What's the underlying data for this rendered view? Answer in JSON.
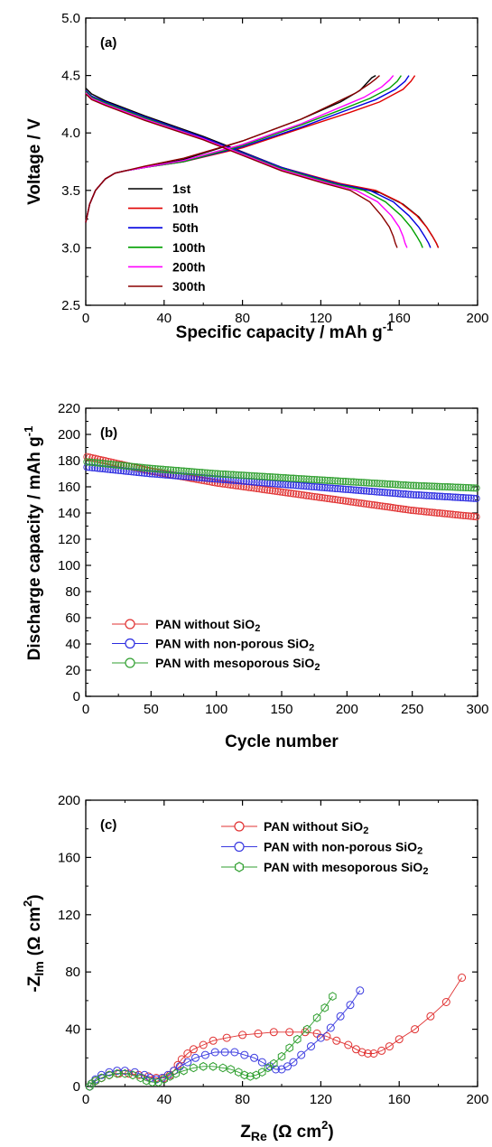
{
  "chart_data": [
    {
      "type": "line",
      "panel_label": "(a)",
      "xlabel": "Specific capacity / mAh g",
      "xlabel_sup": "-1",
      "ylabel": "Voltage / V",
      "xlim": [
        0,
        200
      ],
      "ylim": [
        2.5,
        5.0
      ],
      "xticks": [
        "0",
        "40",
        "80",
        "120",
        "160",
        "200"
      ],
      "yticks": [
        "2.5",
        "3.0",
        "3.5",
        "4.0",
        "4.5",
        "5.0"
      ],
      "legend_position": "bottom-left",
      "series": [
        {
          "name": "1st",
          "color": "#000000",
          "charge": {
            "x": [
              0,
              2,
              5,
              10,
              15,
              20,
              30,
              50,
              80,
              110,
              130,
              140,
              146,
              148
            ],
            "y": [
              3.22,
              3.38,
              3.5,
              3.6,
              3.65,
              3.67,
              3.7,
              3.77,
              3.93,
              4.12,
              4.27,
              4.37,
              4.48,
              4.5
            ]
          },
          "discharge": {
            "x": [
              0,
              3,
              10,
              30,
              60,
              100,
              130,
              150,
              162,
              170,
              174,
              177,
              179,
              180
            ],
            "y": [
              4.39,
              4.34,
              4.28,
              4.15,
              3.97,
              3.7,
              3.55,
              3.48,
              3.38,
              3.27,
              3.18,
              3.1,
              3.04,
              3.0
            ]
          }
        },
        {
          "name": "10th",
          "color": "#e00000",
          "charge": {
            "x": [
              0,
              2,
              5,
              10,
              15,
              20,
              30,
              50,
              80,
              110,
              135,
              150,
              162,
              166,
              168
            ],
            "y": [
              3.22,
              3.38,
              3.5,
              3.6,
              3.65,
              3.67,
              3.7,
              3.75,
              3.87,
              4.04,
              4.18,
              4.27,
              4.38,
              4.45,
              4.5
            ]
          },
          "discharge": {
            "x": [
              0,
              3,
              10,
              30,
              60,
              100,
              130,
              148,
              160,
              169,
              174,
              177,
              179,
              180
            ],
            "y": [
              4.37,
              4.32,
              4.27,
              4.14,
              3.96,
              3.7,
              3.56,
              3.5,
              3.4,
              3.28,
              3.18,
              3.1,
              3.04,
              3.0
            ]
          }
        },
        {
          "name": "50th",
          "color": "#0000e0",
          "charge": {
            "x": [
              0,
              2,
              5,
              10,
              15,
              20,
              30,
              50,
              80,
              110,
              132,
              148,
              158,
              163,
              165
            ],
            "y": [
              3.22,
              3.38,
              3.5,
              3.6,
              3.65,
              3.67,
              3.7,
              3.75,
              3.88,
              4.05,
              4.19,
              4.29,
              4.38,
              4.45,
              4.5
            ]
          },
          "discharge": {
            "x": [
              0,
              3,
              10,
              30,
              60,
              100,
              128,
              145,
              157,
              165,
              170,
              173,
              175,
              176
            ],
            "y": [
              4.37,
              4.32,
              4.27,
              4.14,
              3.96,
              3.7,
              3.56,
              3.5,
              3.4,
              3.28,
              3.18,
              3.1,
              3.04,
              3.0
            ]
          }
        },
        {
          "name": "100th",
          "color": "#00a000",
          "charge": {
            "x": [
              0,
              2,
              5,
              10,
              15,
              20,
              30,
              50,
              80,
              110,
              130,
              145,
              155,
              159,
              161
            ],
            "y": [
              3.22,
              3.38,
              3.5,
              3.6,
              3.65,
              3.67,
              3.7,
              3.75,
              3.89,
              4.07,
              4.2,
              4.3,
              4.39,
              4.45,
              4.5
            ]
          },
          "discharge": {
            "x": [
              0,
              3,
              10,
              30,
              60,
              100,
              126,
              142,
              153,
              161,
              166,
              169,
              171,
              172
            ],
            "y": [
              4.36,
              4.31,
              4.26,
              4.13,
              3.95,
              3.69,
              3.56,
              3.5,
              3.4,
              3.28,
              3.18,
              3.1,
              3.04,
              3.0
            ]
          }
        },
        {
          "name": "200th",
          "color": "#ff00ff",
          "charge": {
            "x": [
              0,
              2,
              5,
              10,
              15,
              20,
              30,
              50,
              80,
              110,
              128,
              142,
              151,
              155,
              157
            ],
            "y": [
              3.22,
              3.38,
              3.5,
              3.6,
              3.65,
              3.67,
              3.7,
              3.76,
              3.9,
              4.08,
              4.21,
              4.31,
              4.4,
              4.46,
              4.5
            ]
          },
          "discharge": {
            "x": [
              0,
              3,
              10,
              30,
              60,
              100,
              124,
              138,
              149,
              156,
              160,
              162,
              163,
              164
            ],
            "y": [
              4.35,
              4.3,
              4.25,
              4.12,
              3.95,
              3.68,
              3.56,
              3.5,
              3.4,
              3.28,
              3.18,
              3.1,
              3.04,
              3.0
            ]
          }
        },
        {
          "name": "300th",
          "color": "#8b0000",
          "charge": {
            "x": [
              0,
              2,
              5,
              10,
              15,
              20,
              30,
              50,
              80,
              110,
              126,
              138,
              145,
              148,
              150
            ],
            "y": [
              3.22,
              3.38,
              3.5,
              3.6,
              3.65,
              3.67,
              3.71,
              3.78,
              3.93,
              4.12,
              4.25,
              4.35,
              4.43,
              4.47,
              4.5
            ]
          },
          "discharge": {
            "x": [
              0,
              3,
              10,
              30,
              60,
              100,
              122,
              135,
              145,
              151,
              155,
              157,
              158,
              159
            ],
            "y": [
              4.34,
              4.29,
              4.24,
              4.11,
              3.94,
              3.67,
              3.56,
              3.5,
              3.4,
              3.28,
              3.18,
              3.1,
              3.04,
              3.0
            ]
          }
        }
      ]
    },
    {
      "type": "scatter",
      "panel_label": "(b)",
      "xlabel": "Cycle number",
      "ylabel": "Discharge capacity / mAh g",
      "ylabel_sup": "-1",
      "xlim": [
        0,
        300
      ],
      "ylim": [
        0,
        220
      ],
      "xticks": [
        "0",
        "50",
        "100",
        "150",
        "200",
        "250",
        "300"
      ],
      "yticks": [
        "0",
        "20",
        "40",
        "60",
        "80",
        "100",
        "120",
        "140",
        "160",
        "180",
        "200",
        "220"
      ],
      "legend_position": "bottom-left",
      "series": [
        {
          "name": "PAN without SiO",
          "name_sub": "2",
          "color": "#e03030",
          "x": [
            1,
            50,
            100,
            150,
            200,
            250,
            300
          ],
          "y": [
            183,
            172,
            163,
            156,
            149,
            142,
            137
          ]
        },
        {
          "name": "PAN with non-porous SiO",
          "name_sub": "2",
          "color": "#2a2ae0",
          "x": [
            1,
            50,
            100,
            150,
            200,
            250,
            300
          ],
          "y": [
            175,
            170,
            166,
            162,
            158,
            154,
            151
          ]
        },
        {
          "name": "PAN with mesoporous SiO",
          "name_sub": "2",
          "color": "#2f9f2f",
          "x": [
            1,
            50,
            100,
            150,
            200,
            250,
            300
          ],
          "y": [
            179,
            174,
            170,
            167,
            164,
            161,
            159
          ]
        }
      ]
    },
    {
      "type": "scatter",
      "panel_label": "(c)",
      "xlabel": "Z",
      "xlabel_sub": "Re",
      "xlabel_unit": "(Ω cm",
      "xlabel_unit_sup": "2",
      "xlabel_unit_end": ")",
      "ylabel": "-Z",
      "ylabel_sub": "Im",
      "ylabel_unit": "(Ω cm",
      "ylabel_unit_sup": "2",
      "ylabel_unit_end": ")",
      "xlim": [
        0,
        200
      ],
      "ylim": [
        0,
        200
      ],
      "xticks": [
        "0",
        "40",
        "80",
        "120",
        "160",
        "200"
      ],
      "yticks": [
        "0",
        "40",
        "80",
        "120",
        "160",
        "200"
      ],
      "legend_position": "top-right",
      "series": [
        {
          "name": "PAN without SiO",
          "name_sub": "2",
          "color": "#e03030",
          "marker": "circle",
          "x": [
            2,
            3,
            5,
            8,
            12,
            17,
            22,
            27,
            32,
            36,
            40,
            43,
            45,
            47,
            49,
            52,
            55,
            60,
            65,
            72,
            80,
            88,
            96,
            104,
            112,
            118,
            123,
            128,
            134,
            138,
            141,
            144,
            147,
            151,
            155,
            160,
            168,
            176,
            184,
            192
          ],
          "y": [
            0,
            2,
            4,
            6,
            8,
            9,
            9,
            8,
            7,
            6,
            6,
            8,
            11,
            15,
            19,
            23,
            26,
            29,
            32,
            34,
            36,
            37,
            38,
            38,
            38,
            37,
            35,
            32,
            29,
            26,
            24,
            23,
            23,
            25,
            28,
            33,
            40,
            49,
            59,
            76
          ]
        },
        {
          "name": "PAN with non-porous SiO",
          "name_sub": "2",
          "color": "#3a3ae0",
          "marker": "circle",
          "x": [
            2,
            3,
            5,
            8,
            12,
            16,
            20,
            25,
            30,
            33,
            36,
            39,
            42,
            45,
            48,
            52,
            56,
            61,
            66,
            71,
            76,
            81,
            86,
            90,
            94,
            97,
            100,
            103,
            106,
            110,
            115,
            120,
            125,
            130,
            135,
            140
          ],
          "y": [
            0,
            2,
            5,
            8,
            10,
            11,
            11,
            10,
            8,
            6,
            5,
            6,
            8,
            11,
            14,
            17,
            20,
            22,
            24,
            24,
            24,
            22,
            20,
            17,
            14,
            12,
            12,
            14,
            17,
            22,
            28,
            34,
            41,
            49,
            57,
            67
          ]
        },
        {
          "name": "PAN with mesoporous SiO",
          "name_sub": "2",
          "color": "#2f9f2f",
          "marker": "hexagon",
          "x": [
            2,
            3,
            5,
            8,
            12,
            16,
            20,
            24,
            28,
            31,
            34,
            37,
            40,
            43,
            46,
            50,
            55,
            60,
            65,
            70,
            74,
            78,
            81,
            84,
            87,
            90,
            93,
            96,
            100,
            104,
            108,
            113,
            118,
            122,
            126
          ],
          "y": [
            0,
            2,
            4,
            6,
            8,
            9,
            9,
            8,
            6,
            4,
            3,
            3,
            5,
            7,
            9,
            11,
            13,
            14,
            14,
            13,
            12,
            10,
            8,
            7,
            8,
            10,
            13,
            16,
            21,
            27,
            33,
            40,
            48,
            55,
            63
          ]
        }
      ]
    }
  ]
}
